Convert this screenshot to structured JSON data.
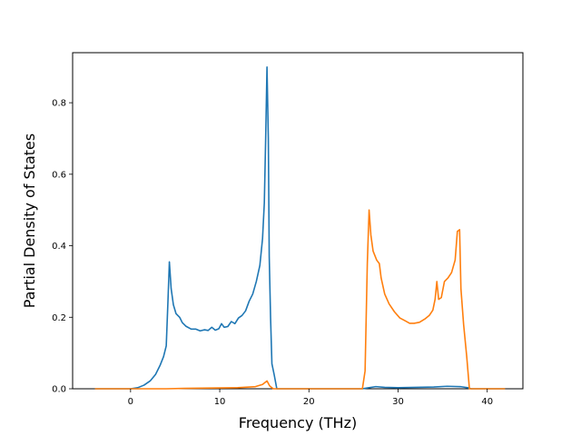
{
  "chart_data": {
    "type": "line",
    "title": "",
    "xlabel": "Frequency (THz)",
    "ylabel": "Partial Density of States",
    "xlim": [
      -6.5,
      44
    ],
    "ylim": [
      0,
      0.94
    ],
    "x_ticks": [
      0,
      10,
      20,
      30,
      40
    ],
    "y_ticks": [
      0.0,
      0.2,
      0.4,
      0.6,
      0.8
    ],
    "x_tick_labels": [
      "0",
      "10",
      "20",
      "30",
      "40"
    ],
    "y_tick_labels": [
      "0.0",
      "0.2",
      "0.4",
      "0.6",
      "0.8"
    ],
    "grid": false,
    "legend": "none",
    "series": [
      {
        "color": "#1f77b4",
        "points": [
          [
            -4.0,
            0.0
          ],
          [
            0.0,
            0.0
          ],
          [
            0.8,
            0.003
          ],
          [
            1.5,
            0.01
          ],
          [
            2.2,
            0.022
          ],
          [
            2.8,
            0.04
          ],
          [
            3.3,
            0.065
          ],
          [
            3.7,
            0.09
          ],
          [
            4.0,
            0.12
          ],
          [
            4.2,
            0.25
          ],
          [
            4.35,
            0.355
          ],
          [
            4.55,
            0.28
          ],
          [
            4.8,
            0.235
          ],
          [
            5.1,
            0.21
          ],
          [
            5.5,
            0.2
          ],
          [
            5.8,
            0.185
          ],
          [
            6.2,
            0.175
          ],
          [
            6.8,
            0.167
          ],
          [
            7.3,
            0.167
          ],
          [
            7.8,
            0.162
          ],
          [
            8.3,
            0.165
          ],
          [
            8.7,
            0.163
          ],
          [
            9.1,
            0.172
          ],
          [
            9.5,
            0.164
          ],
          [
            9.9,
            0.168
          ],
          [
            10.2,
            0.182
          ],
          [
            10.5,
            0.172
          ],
          [
            10.9,
            0.174
          ],
          [
            11.3,
            0.188
          ],
          [
            11.7,
            0.182
          ],
          [
            12.1,
            0.198
          ],
          [
            12.5,
            0.205
          ],
          [
            12.9,
            0.218
          ],
          [
            13.3,
            0.245
          ],
          [
            13.7,
            0.265
          ],
          [
            14.1,
            0.3
          ],
          [
            14.5,
            0.345
          ],
          [
            14.8,
            0.42
          ],
          [
            15.0,
            0.52
          ],
          [
            15.15,
            0.7
          ],
          [
            15.3,
            0.9
          ],
          [
            15.45,
            0.7
          ],
          [
            15.55,
            0.37
          ],
          [
            15.7,
            0.2
          ],
          [
            15.85,
            0.07
          ],
          [
            16.1,
            0.04
          ],
          [
            16.4,
            0.0
          ],
          [
            26.0,
            0.0
          ],
          [
            26.5,
            0.002
          ],
          [
            27.5,
            0.006
          ],
          [
            28.5,
            0.004
          ],
          [
            30.0,
            0.003
          ],
          [
            32.0,
            0.004
          ],
          [
            34.0,
            0.005
          ],
          [
            35.5,
            0.007
          ],
          [
            37.0,
            0.006
          ],
          [
            37.8,
            0.003
          ],
          [
            38.2,
            0.0
          ],
          [
            42.0,
            0.0
          ]
        ]
      },
      {
        "color": "#ff7f0e",
        "points": [
          [
            -4.0,
            0.0
          ],
          [
            4.0,
            0.0
          ],
          [
            6.0,
            0.001
          ],
          [
            9.0,
            0.002
          ],
          [
            12.0,
            0.003
          ],
          [
            14.0,
            0.006
          ],
          [
            14.8,
            0.012
          ],
          [
            15.3,
            0.022
          ],
          [
            15.6,
            0.008
          ],
          [
            16.0,
            0.0
          ],
          [
            26.0,
            0.0
          ],
          [
            26.3,
            0.05
          ],
          [
            26.55,
            0.35
          ],
          [
            26.75,
            0.5
          ],
          [
            26.95,
            0.43
          ],
          [
            27.2,
            0.385
          ],
          [
            27.6,
            0.36
          ],
          [
            27.9,
            0.35
          ],
          [
            28.1,
            0.31
          ],
          [
            28.5,
            0.265
          ],
          [
            29.0,
            0.237
          ],
          [
            29.6,
            0.215
          ],
          [
            30.2,
            0.198
          ],
          [
            30.8,
            0.19
          ],
          [
            31.3,
            0.183
          ],
          [
            31.8,
            0.183
          ],
          [
            32.4,
            0.186
          ],
          [
            33.0,
            0.195
          ],
          [
            33.5,
            0.205
          ],
          [
            33.9,
            0.22
          ],
          [
            34.15,
            0.25
          ],
          [
            34.35,
            0.3
          ],
          [
            34.55,
            0.25
          ],
          [
            34.85,
            0.255
          ],
          [
            35.2,
            0.3
          ],
          [
            35.6,
            0.31
          ],
          [
            36.0,
            0.325
          ],
          [
            36.4,
            0.36
          ],
          [
            36.65,
            0.44
          ],
          [
            36.9,
            0.445
          ],
          [
            37.05,
            0.28
          ],
          [
            37.35,
            0.18
          ],
          [
            37.7,
            0.09
          ],
          [
            38.0,
            0.0
          ],
          [
            42.0,
            0.0
          ]
        ]
      }
    ]
  }
}
